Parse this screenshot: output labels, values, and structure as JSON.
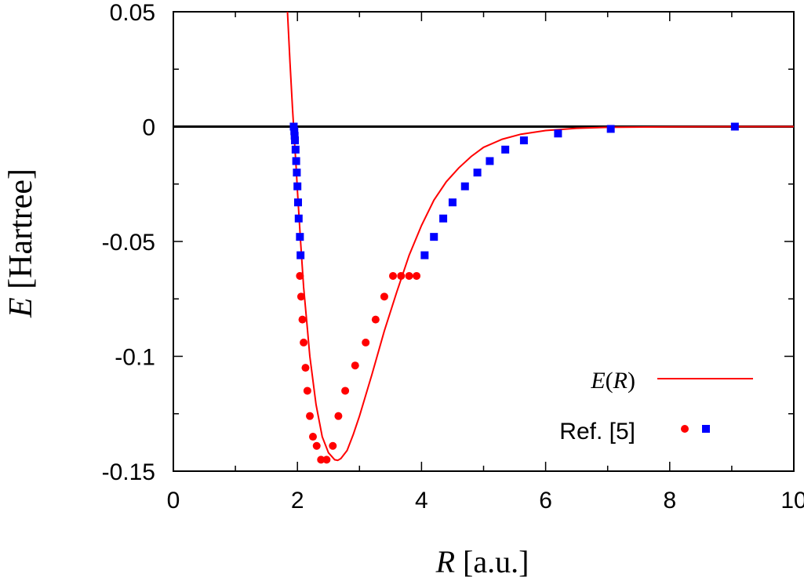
{
  "chart_data": {
    "type": "line",
    "xlabel": {
      "symbol": "R",
      "unit": " [a.u.]"
    },
    "ylabel": {
      "symbol": "E",
      "unit": " [Hartree]"
    },
    "xlim": [
      0,
      10
    ],
    "ylim": [
      -0.15,
      0.05
    ],
    "xticks": [
      "0",
      "2",
      "4",
      "6",
      "8",
      "10"
    ],
    "xtick_values": [
      0,
      2,
      4,
      6,
      8,
      10
    ],
    "yticks": [
      "0.05",
      "0",
      "-0.05",
      "-0.1",
      "-0.15"
    ],
    "ytick_values": [
      0.05,
      0,
      -0.05,
      -0.1,
      -0.15
    ],
    "zero_line": true,
    "legend": {
      "position": "bottom-right",
      "entries": [
        {
          "label_italic": "E",
          "label_rest": "(",
          "label_italic2": "R",
          "label_end": ")",
          "style": "line",
          "color": "#ff0000"
        },
        {
          "label": "Ref. [5]",
          "style": "markers",
          "colors": [
            "#ff0000",
            "#0000ff"
          ]
        }
      ]
    },
    "series": [
      {
        "label": "E(R)",
        "style": "line",
        "color": "#ff0000",
        "x": [
          1.84,
          1.88,
          1.92,
          1.95,
          1.98,
          2.0,
          2.05,
          2.1,
          2.15,
          2.2,
          2.3,
          2.4,
          2.5,
          2.6,
          2.65,
          2.7,
          2.8,
          2.9,
          3.0,
          3.2,
          3.4,
          3.6,
          3.8,
          4.0,
          4.2,
          4.4,
          4.6,
          4.8,
          5.0,
          5.3,
          5.6,
          6.0,
          6.5,
          7.0,
          8.0,
          9.0,
          10.0
        ],
        "y": [
          0.05,
          0.028,
          0.008,
          -0.005,
          -0.018,
          -0.028,
          -0.05,
          -0.07,
          -0.085,
          -0.1,
          -0.121,
          -0.135,
          -0.142,
          -0.145,
          -0.1453,
          -0.1445,
          -0.141,
          -0.134,
          -0.126,
          -0.108,
          -0.089,
          -0.072,
          -0.056,
          -0.043,
          -0.032,
          -0.024,
          -0.018,
          -0.013,
          -0.009,
          -0.0055,
          -0.0033,
          -0.0017,
          -0.0007,
          -0.0003,
          -0.0001,
          0.0,
          0.0
        ]
      },
      {
        "label": "Ref. [5] (circles)",
        "style": "circle",
        "color": "#ff0000",
        "x": [
          2.04,
          2.06,
          2.08,
          2.1,
          2.13,
          2.16,
          2.2,
          2.25,
          2.31,
          2.38,
          2.47,
          2.57,
          2.66,
          2.77,
          2.93,
          3.1,
          3.26,
          3.4,
          3.54,
          3.67,
          3.8,
          3.92
        ],
        "y": [
          -0.065,
          -0.074,
          -0.084,
          -0.094,
          -0.105,
          -0.115,
          -0.126,
          -0.135,
          -0.139,
          -0.145,
          -0.145,
          -0.139,
          -0.126,
          -0.115,
          -0.104,
          -0.094,
          -0.084,
          -0.074,
          -0.065,
          -0.065,
          -0.065,
          -0.065
        ]
      },
      {
        "label": "Ref. [5] (squares)",
        "style": "square",
        "color": "#0000ff",
        "x": [
          1.94,
          1.95,
          1.955,
          1.96,
          1.97,
          1.98,
          1.99,
          2.0,
          2.01,
          2.02,
          2.04,
          2.05,
          4.05,
          4.2,
          4.35,
          4.5,
          4.7,
          4.9,
          5.1,
          5.35,
          5.65,
          6.2,
          7.05,
          9.05
        ],
        "y": [
          0.0,
          -0.002,
          -0.004,
          -0.006,
          -0.01,
          -0.015,
          -0.02,
          -0.026,
          -0.033,
          -0.04,
          -0.048,
          -0.056,
          -0.056,
          -0.048,
          -0.04,
          -0.033,
          -0.026,
          -0.02,
          -0.015,
          -0.01,
          -0.006,
          -0.003,
          -0.001,
          0.0
        ]
      }
    ]
  }
}
